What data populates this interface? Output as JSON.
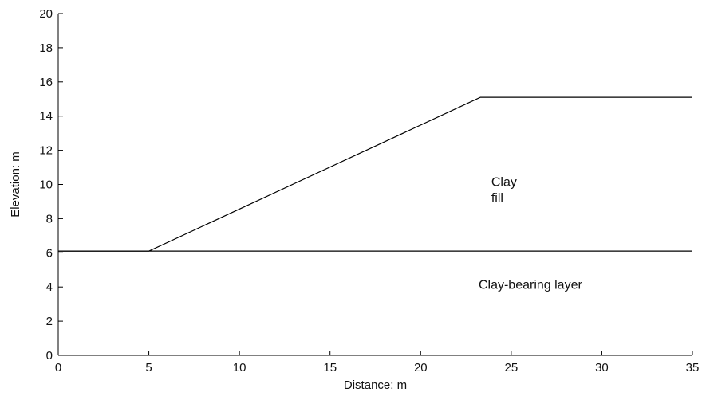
{
  "chart_data": {
    "type": "line",
    "title": "",
    "xlabel": "Distance: m",
    "ylabel": "Elevation: m",
    "xlim": [
      0,
      35
    ],
    "ylim": [
      0,
      20
    ],
    "x_ticks": [
      0,
      5,
      10,
      15,
      20,
      25,
      30,
      35
    ],
    "y_ticks": [
      0,
      2,
      4,
      6,
      8,
      10,
      12,
      14,
      16,
      18,
      20
    ],
    "grid": false,
    "legend": "none",
    "series": [
      {
        "x": [
          0,
          5,
          23.3,
          35
        ],
        "y": [
          6.1,
          6.1,
          15.1,
          15.1
        ]
      },
      {
        "x": [
          0,
          35
        ],
        "y": [
          6.1,
          6.1
        ]
      }
    ],
    "annotations": [
      {
        "lines": [
          "Clay",
          "fill"
        ],
        "x": 23.9,
        "y": 9.9
      },
      {
        "lines": [
          "Clay-bearing layer"
        ],
        "x": 23.2,
        "y": 3.9
      }
    ],
    "colors": {
      "line": "#000000",
      "axis": "#000000",
      "text": "#111111"
    }
  }
}
